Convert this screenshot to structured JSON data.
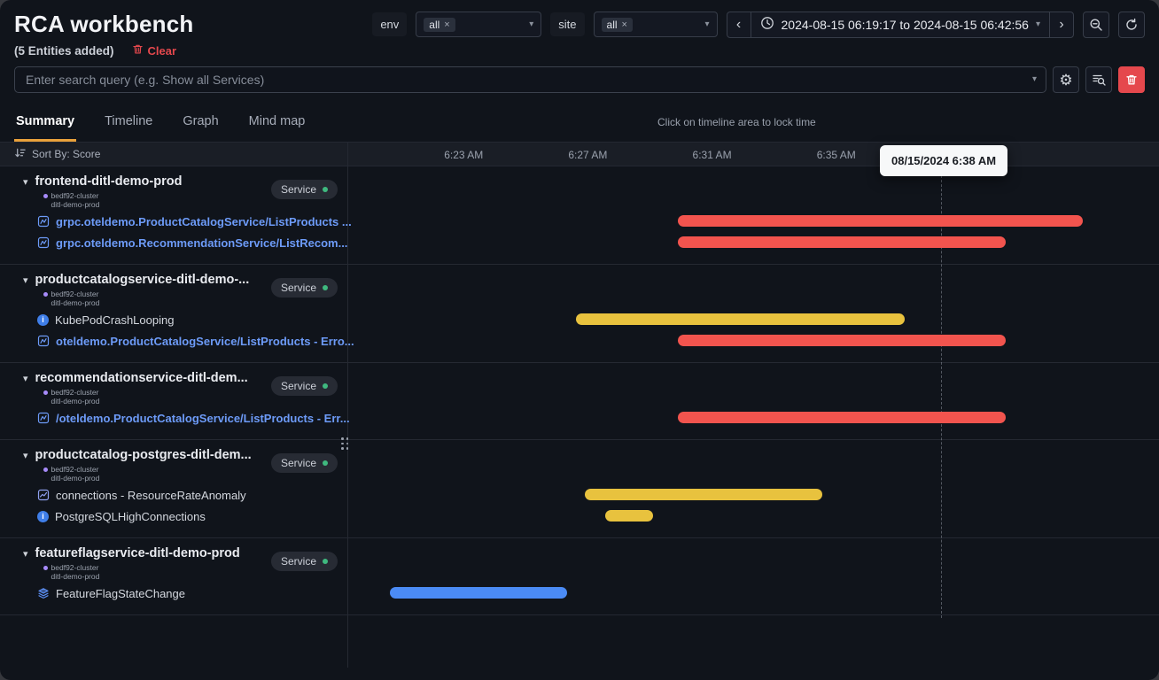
{
  "header": {
    "title": "RCA workbench",
    "env_label": "env",
    "env_value": "all",
    "site_label": "site",
    "site_value": "all",
    "time_range": "2024-08-15 06:19:17 to 2024-08-15 06:42:56"
  },
  "subheader": {
    "entities_added": "(5 Entities added)",
    "clear_label": "Clear"
  },
  "search": {
    "placeholder": "Enter search query (e.g. Show all Services)"
  },
  "tabs": [
    {
      "label": "Summary",
      "active": true
    },
    {
      "label": "Timeline",
      "active": false
    },
    {
      "label": "Graph",
      "active": false
    },
    {
      "label": "Mind map",
      "active": false
    }
  ],
  "timeline": {
    "lock_hint": "Click on timeline area to lock time",
    "tooltip": "08/15/2024 6:38 AM",
    "sort_label": "Sort By: Score",
    "axis_start": "6:19:17 AM",
    "cursor_time": "6:38:22 AM",
    "ticks": [
      {
        "label": "6:23 AM",
        "time": "6:23:00 AM"
      },
      {
        "label": "6:27 AM",
        "time": "6:27:00 AM"
      },
      {
        "label": "6:31 AM",
        "time": "6:31:00 AM"
      },
      {
        "label": "6:35 AM",
        "time": "6:35:00 AM"
      }
    ]
  },
  "glyphs": {
    "chevron_down": "▾",
    "chevron_left": "‹",
    "chevron_right": "›",
    "close": "×",
    "gear": "⚙"
  },
  "colors": {
    "critical": "#f2544e",
    "warning": "#e8c23e",
    "info": "#4b8bf5",
    "accent": "#e9a13b",
    "link": "#6d9bf8",
    "badge_dot": "#3fb97f",
    "cluster_dot": "#a78bfa",
    "danger": "#e5484d"
  },
  "groups": [
    {
      "name": "frontend-ditl-demo-prod",
      "cluster": "bedf92-cluster",
      "namespace": "ditl-demo-prod",
      "badge": "Service",
      "children": [
        {
          "icon": "trace-icon",
          "label": "grpc.oteldemo.ProductCatalogService/ListProducts ...",
          "link": true
        },
        {
          "icon": "trace-icon",
          "label": "grpc.oteldemo.RecommendationService/ListRecom...",
          "link": true
        }
      ],
      "bars": [
        {
          "severity": "critical",
          "start": "6:29:54 AM",
          "end": "6:42:56 AM",
          "row": 0
        },
        {
          "severity": "critical",
          "start": "6:29:54 AM",
          "end": "6:40:27 AM",
          "row": 1
        }
      ]
    },
    {
      "name": "productcatalogservice-ditl-demo-...",
      "cluster": "bedf92-cluster",
      "namespace": "ditl-demo-prod",
      "badge": "Service",
      "children": [
        {
          "icon": "alert-icon",
          "label": "KubePodCrashLooping",
          "link": false
        },
        {
          "icon": "trace-icon",
          "label": "oteldemo.ProductCatalogService/ListProducts - Erro...",
          "link": true
        }
      ],
      "bars": [
        {
          "severity": "warning",
          "start": "6:26:37 AM",
          "end": "6:37:13 AM",
          "row": 0
        },
        {
          "severity": "critical",
          "start": "6:29:54 AM",
          "end": "6:40:27 AM",
          "row": 1
        }
      ]
    },
    {
      "name": "recommendationservice-ditl-dem...",
      "cluster": "bedf92-cluster",
      "namespace": "ditl-demo-prod",
      "badge": "Service",
      "children": [
        {
          "icon": "trace-icon",
          "label": "/oteldemo.ProductCatalogService/ListProducts - Err...",
          "link": true
        }
      ],
      "bars": [
        {
          "severity": "critical",
          "start": "6:29:54 AM",
          "end": "6:40:27 AM",
          "row": 0
        }
      ]
    },
    {
      "name": "productcatalog-postgres-ditl-dem...",
      "cluster": "bedf92-cluster",
      "namespace": "ditl-demo-prod",
      "badge": "Service",
      "children": [
        {
          "icon": "metric-icon",
          "label": "connections - ResourceRateAnomaly",
          "link": false
        },
        {
          "icon": "alert-icon",
          "label": "PostgreSQLHighConnections",
          "link": false
        }
      ],
      "bars": [
        {
          "severity": "warning",
          "start": "6:26:54 AM",
          "end": "6:34:33 AM",
          "row": 0
        },
        {
          "severity": "warning",
          "start": "6:27:33 AM",
          "end": "6:29:06 AM",
          "row": 1
        }
      ]
    },
    {
      "name": "featureflagservice-ditl-demo-prod",
      "cluster": "bedf92-cluster",
      "namespace": "ditl-demo-prod",
      "badge": "Service",
      "children": [
        {
          "icon": "layers-icon",
          "label": "FeatureFlagStateChange",
          "link": false
        }
      ],
      "bars": [
        {
          "severity": "info",
          "start": "6:20:37 AM",
          "end": "6:26:20 AM",
          "row": 0
        }
      ]
    }
  ]
}
